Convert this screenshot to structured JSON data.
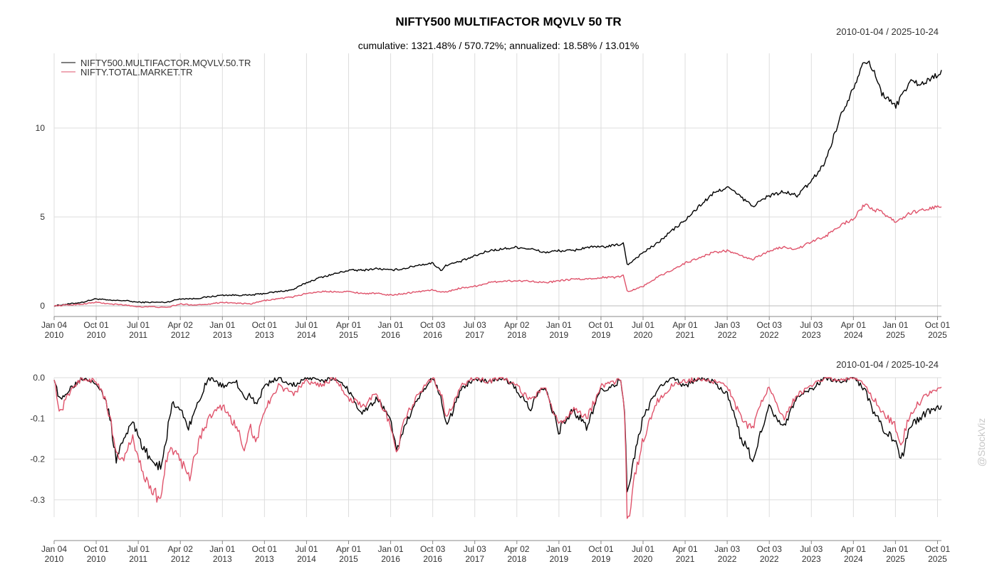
{
  "chart": {
    "title": "NIFTY500 MULTIFACTOR MQVLV 50 TR",
    "subtitle": "cumulative: 1321.48% / 570.72%; annualized: 18.58% / 13.01%",
    "date_range": "2010-01-04 / 2025-10-24",
    "watermark": "@StockViz",
    "colors": {
      "series1": "#000000",
      "series2": "#df536b",
      "grid": "#dddddd",
      "axis": "#888888"
    }
  },
  "x_ticks": [
    {
      "l1": "Jan 04",
      "l2": "2010",
      "t": 2010.0
    },
    {
      "l1": "Oct 01",
      "l2": "2010",
      "t": 2010.75
    },
    {
      "l1": "Jul 01",
      "l2": "2011",
      "t": 2011.5
    },
    {
      "l1": "Apr 02",
      "l2": "2012",
      "t": 2012.25
    },
    {
      "l1": "Jan 01",
      "l2": "2013",
      "t": 2013.0
    },
    {
      "l1": "Oct 01",
      "l2": "2013",
      "t": 2013.75
    },
    {
      "l1": "Jul 01",
      "l2": "2014",
      "t": 2014.5
    },
    {
      "l1": "Apr 01",
      "l2": "2015",
      "t": 2015.25
    },
    {
      "l1": "Jan 01",
      "l2": "2016",
      "t": 2016.0
    },
    {
      "l1": "Oct 03",
      "l2": "2016",
      "t": 2016.75
    },
    {
      "l1": "Jul 03",
      "l2": "2017",
      "t": 2017.5
    },
    {
      "l1": "Apr 02",
      "l2": "2018",
      "t": 2018.25
    },
    {
      "l1": "Jan 01",
      "l2": "2019",
      "t": 2019.0
    },
    {
      "l1": "Oct 01",
      "l2": "2019",
      "t": 2019.75
    },
    {
      "l1": "Jul 01",
      "l2": "2020",
      "t": 2020.5
    },
    {
      "l1": "Apr 01",
      "l2": "2021",
      "t": 2021.25
    },
    {
      "l1": "Jan 03",
      "l2": "2022",
      "t": 2022.0
    },
    {
      "l1": "Oct 03",
      "l2": "2022",
      "t": 2022.75
    },
    {
      "l1": "Jul 03",
      "l2": "2023",
      "t": 2023.5
    },
    {
      "l1": "Apr 01",
      "l2": "2024",
      "t": 2024.25
    },
    {
      "l1": "Jan 01",
      "l2": "2025",
      "t": 2025.0
    },
    {
      "l1": "Oct 01",
      "l2": "2025",
      "t": 2025.75
    }
  ],
  "chart_data": [
    {
      "type": "line",
      "title": "NIFTY500 MULTIFACTOR MQVLV 50 TR",
      "subtitle": "cumulative: 1321.48% / 570.72%; annualized: 18.58% / 13.01%",
      "x_range": [
        "2010-01-04",
        "2025-10-24"
      ],
      "xlim": [
        2010.0,
        2025.82
      ],
      "ylim": [
        -0.8,
        14.2
      ],
      "y_ticks": [
        {
          "label": "0",
          "v": 0
        },
        {
          "label": "5",
          "v": 5
        },
        {
          "label": "10",
          "v": 10
        }
      ],
      "grid": true,
      "legend_position": "top-left",
      "x": [
        2010.0,
        2010.25,
        2010.5,
        2010.75,
        2011.0,
        2011.25,
        2011.5,
        2011.75,
        2012.0,
        2012.25,
        2012.5,
        2012.75,
        2013.0,
        2013.25,
        2013.5,
        2013.75,
        2014.0,
        2014.25,
        2014.5,
        2014.75,
        2015.0,
        2015.25,
        2015.5,
        2015.75,
        2016.0,
        2016.25,
        2016.5,
        2016.75,
        2016.9,
        2017.0,
        2017.25,
        2017.5,
        2017.75,
        2018.0,
        2018.25,
        2018.5,
        2018.75,
        2019.0,
        2019.25,
        2019.5,
        2019.75,
        2020.0,
        2020.15,
        2020.22,
        2020.5,
        2020.75,
        2021.0,
        2021.25,
        2021.5,
        2021.75,
        2022.0,
        2022.25,
        2022.45,
        2022.75,
        2023.0,
        2023.25,
        2023.5,
        2023.75,
        2024.0,
        2024.25,
        2024.45,
        2024.6,
        2024.75,
        2025.0,
        2025.25,
        2025.5,
        2025.82
      ],
      "series": [
        {
          "name": "NIFTY500.MULTIFACTOR.MQVLV.50.TR",
          "values": [
            0.0,
            0.1,
            0.2,
            0.4,
            0.3,
            0.3,
            0.2,
            0.2,
            0.2,
            0.4,
            0.4,
            0.5,
            0.6,
            0.6,
            0.6,
            0.7,
            0.8,
            0.9,
            1.3,
            1.6,
            1.8,
            2.0,
            2.0,
            2.1,
            2.0,
            2.1,
            2.3,
            2.4,
            2.0,
            2.3,
            2.5,
            2.8,
            3.1,
            3.2,
            3.3,
            3.2,
            3.0,
            3.1,
            3.1,
            3.3,
            3.3,
            3.4,
            3.5,
            2.3,
            3.0,
            3.5,
            4.2,
            4.8,
            5.6,
            6.3,
            6.7,
            6.1,
            5.6,
            6.2,
            6.4,
            6.2,
            7.0,
            8.1,
            10.5,
            12.3,
            13.9,
            13.3,
            12.0,
            11.2,
            12.6,
            12.5,
            13.2
          ]
        },
        {
          "name": "NIFTY.TOTAL.MARKET.TR",
          "values": [
            0.0,
            0.05,
            0.1,
            0.2,
            0.1,
            0.05,
            -0.05,
            -0.05,
            -0.1,
            0.1,
            0.05,
            0.1,
            0.2,
            0.15,
            0.1,
            0.3,
            0.4,
            0.5,
            0.7,
            0.8,
            0.8,
            0.8,
            0.7,
            0.7,
            0.6,
            0.7,
            0.8,
            0.9,
            0.75,
            0.8,
            1.0,
            1.1,
            1.3,
            1.4,
            1.4,
            1.4,
            1.3,
            1.4,
            1.5,
            1.5,
            1.6,
            1.6,
            1.7,
            0.8,
            1.1,
            1.6,
            2.0,
            2.4,
            2.7,
            3.0,
            3.1,
            2.8,
            2.6,
            3.1,
            3.3,
            3.2,
            3.6,
            3.9,
            4.5,
            4.9,
            5.7,
            5.4,
            5.3,
            4.7,
            5.2,
            5.4,
            5.6
          ]
        }
      ]
    },
    {
      "type": "line",
      "title": "",
      "x_range": [
        "2010-01-04",
        "2025-10-24"
      ],
      "xlim": [
        2010.0,
        2025.82
      ],
      "ylim": [
        -0.4,
        0.0
      ],
      "y_ticks": [
        {
          "label": "0.0",
          "v": 0.0
        },
        {
          "label": "-0.1",
          "v": -0.1
        },
        {
          "label": "-0.2",
          "v": -0.2
        },
        {
          "label": "-0.3",
          "v": -0.3
        }
      ],
      "grid": true,
      "x": [
        2010.0,
        2010.1,
        2010.25,
        2010.5,
        2010.75,
        2010.9,
        2011.0,
        2011.1,
        2011.25,
        2011.4,
        2011.5,
        2011.6,
        2011.75,
        2011.9,
        2012.0,
        2012.1,
        2012.25,
        2012.4,
        2012.6,
        2012.75,
        2013.0,
        2013.25,
        2013.4,
        2013.5,
        2013.6,
        2013.75,
        2014.0,
        2014.25,
        2014.5,
        2014.75,
        2015.0,
        2015.25,
        2015.5,
        2015.75,
        2016.0,
        2016.1,
        2016.25,
        2016.5,
        2016.75,
        2016.9,
        2017.0,
        2017.25,
        2017.5,
        2017.75,
        2018.0,
        2018.25,
        2018.5,
        2018.6,
        2018.75,
        2019.0,
        2019.25,
        2019.5,
        2019.75,
        2020.0,
        2020.1,
        2020.18,
        2020.22,
        2020.3,
        2020.5,
        2020.75,
        2021.0,
        2021.25,
        2021.5,
        2021.75,
        2022.0,
        2022.25,
        2022.45,
        2022.6,
        2022.75,
        2023.0,
        2023.25,
        2023.5,
        2023.75,
        2024.0,
        2024.25,
        2024.45,
        2024.6,
        2024.75,
        2025.0,
        2025.1,
        2025.25,
        2025.5,
        2025.82
      ],
      "series": [
        {
          "name": "NIFTY500.MULTIFACTOR.MQVLV.50.TR",
          "values": [
            0.0,
            -0.06,
            -0.03,
            0.0,
            -0.01,
            -0.05,
            -0.1,
            -0.2,
            -0.15,
            -0.1,
            -0.15,
            -0.18,
            -0.2,
            -0.22,
            -0.15,
            -0.06,
            -0.08,
            -0.12,
            -0.05,
            0.0,
            -0.02,
            -0.01,
            -0.06,
            -0.04,
            -0.07,
            -0.02,
            0.0,
            -0.02,
            0.0,
            -0.01,
            0.0,
            -0.03,
            -0.09,
            -0.05,
            -0.1,
            -0.18,
            -0.12,
            -0.05,
            0.0,
            -0.05,
            -0.12,
            -0.03,
            0.0,
            -0.01,
            0.0,
            -0.03,
            -0.08,
            -0.04,
            -0.02,
            -0.13,
            -0.08,
            -0.12,
            -0.03,
            -0.02,
            0.0,
            -0.1,
            -0.3,
            -0.22,
            -0.1,
            -0.03,
            0.0,
            -0.02,
            0.0,
            -0.01,
            -0.04,
            -0.15,
            -0.2,
            -0.13,
            -0.07,
            -0.12,
            -0.05,
            -0.03,
            0.0,
            -0.01,
            0.0,
            -0.03,
            -0.08,
            -0.12,
            -0.16,
            -0.21,
            -0.12,
            -0.09,
            -0.07
          ]
        },
        {
          "name": "NIFTY.TOTAL.MARKET.TR",
          "values": [
            0.0,
            -0.09,
            -0.04,
            0.0,
            -0.01,
            -0.05,
            -0.1,
            -0.18,
            -0.2,
            -0.14,
            -0.2,
            -0.24,
            -0.28,
            -0.3,
            -0.2,
            -0.18,
            -0.2,
            -0.25,
            -0.15,
            -0.1,
            -0.07,
            -0.12,
            -0.18,
            -0.12,
            -0.16,
            -0.08,
            -0.02,
            -0.04,
            -0.01,
            -0.02,
            0.0,
            -0.05,
            -0.07,
            -0.04,
            -0.12,
            -0.19,
            -0.1,
            -0.04,
            0.0,
            -0.04,
            -0.1,
            -0.02,
            0.0,
            -0.01,
            0.0,
            -0.02,
            -0.06,
            -0.04,
            -0.02,
            -0.12,
            -0.08,
            -0.1,
            -0.02,
            -0.01,
            0.0,
            -0.1,
            -0.38,
            -0.28,
            -0.15,
            -0.06,
            -0.02,
            -0.01,
            0.0,
            -0.01,
            -0.02,
            -0.1,
            -0.13,
            -0.06,
            -0.02,
            -0.1,
            -0.04,
            -0.02,
            0.0,
            -0.01,
            0.0,
            -0.02,
            -0.05,
            -0.08,
            -0.12,
            -0.17,
            -0.09,
            -0.05,
            -0.02
          ]
        }
      ]
    }
  ]
}
